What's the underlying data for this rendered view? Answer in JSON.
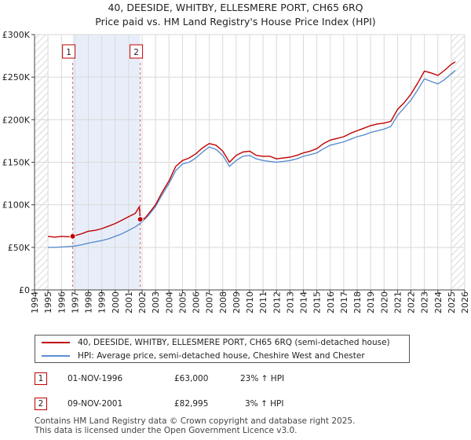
{
  "chart_data": {
    "type": "line",
    "title": "40, DEESIDE, WHITBY, ELLESMERE PORT, CH65 6RQ",
    "subtitle": "Price paid vs. HM Land Registry's House Price Index (HPI)",
    "xlim": [
      1994,
      2026
    ],
    "ylim": [
      0,
      300000
    ],
    "y_ticks": [
      0,
      50000,
      100000,
      150000,
      200000,
      250000,
      300000
    ],
    "y_tick_labels": [
      "£0",
      "£50K",
      "£100K",
      "£150K",
      "£200K",
      "£250K",
      "£300K"
    ],
    "x_ticks": [
      1994,
      1995,
      1996,
      1997,
      1998,
      1999,
      2000,
      2001,
      2002,
      2003,
      2004,
      2005,
      2006,
      2007,
      2008,
      2009,
      2010,
      2011,
      2012,
      2013,
      2014,
      2015,
      2016,
      2017,
      2018,
      2019,
      2020,
      2021,
      2022,
      2023,
      2024,
      2025,
      2026
    ],
    "x_tick_labels": [
      "1994",
      "1995",
      "1996",
      "1997",
      "1998",
      "1999",
      "2000",
      "2001",
      "2002",
      "2003",
      "2004",
      "2005",
      "2006",
      "2007",
      "2008",
      "2009",
      "2010",
      "2011",
      "2012",
      "2013",
      "2014",
      "2015",
      "2016",
      "2017",
      "2018",
      "2019",
      "2020",
      "2021",
      "2022",
      "2023",
      "2024",
      "2025",
      "2026"
    ],
    "shaded_span": [
      1996.84,
      2001.86
    ],
    "hatched_before": 1995.0,
    "hatched_after": 2025.0,
    "series": [
      {
        "name": "40, DEESIDE, WHITBY, ELLESMERE PORT, CH65 6RQ (semi-detached house)",
        "color": "#c00000",
        "x": [
          1995.0,
          1995.5,
          1996.0,
          1996.5,
          1996.84,
          1997.5,
          1998.0,
          1998.5,
          1999.0,
          1999.5,
          2000.0,
          2000.5,
          2001.0,
          2001.5,
          2001.8,
          2001.86,
          2002.2,
          2002.5,
          2003.0,
          2003.5,
          2004.0,
          2004.5,
          2005.0,
          2005.5,
          2006.0,
          2006.5,
          2007.0,
          2007.5,
          2008.0,
          2008.5,
          2009.0,
          2009.5,
          2010.0,
          2010.5,
          2011.0,
          2011.5,
          2012.0,
          2012.5,
          2013.0,
          2013.5,
          2014.0,
          2014.5,
          2015.0,
          2015.5,
          2016.0,
          2016.5,
          2017.0,
          2017.5,
          2018.0,
          2018.5,
          2019.0,
          2019.5,
          2020.0,
          2020.5,
          2021.0,
          2021.5,
          2022.0,
          2022.5,
          2023.0,
          2023.5,
          2024.0,
          2024.5,
          2025.0,
          2025.3
        ],
        "values": [
          63000,
          62000,
          63000,
          62500,
          63000,
          66000,
          69000,
          70000,
          72000,
          75000,
          78000,
          82000,
          86000,
          90000,
          98000,
          82995,
          84000,
          90000,
          100000,
          115000,
          128000,
          145000,
          152000,
          155000,
          160000,
          167000,
          172000,
          170000,
          163000,
          150000,
          158000,
          162000,
          163000,
          158000,
          157000,
          157000,
          154000,
          155000,
          156000,
          158000,
          161000,
          163000,
          166000,
          172000,
          176000,
          178000,
          180000,
          184000,
          187000,
          190000,
          193000,
          195000,
          196000,
          198000,
          212000,
          220000,
          230000,
          243000,
          257000,
          255000,
          252000,
          258000,
          265000,
          268000
        ]
      },
      {
        "name": "HPI: Average price, semi-detached house, Cheshire West and Chester",
        "color": "#5b8fd0",
        "x": [
          1995.0,
          1995.5,
          1996.0,
          1996.5,
          1997.0,
          1997.5,
          1998.0,
          1998.5,
          1999.0,
          1999.5,
          2000.0,
          2000.5,
          2001.0,
          2001.5,
          2002.0,
          2002.5,
          2003.0,
          2003.5,
          2004.0,
          2004.5,
          2005.0,
          2005.5,
          2006.0,
          2006.5,
          2007.0,
          2007.5,
          2008.0,
          2008.5,
          2009.0,
          2009.5,
          2010.0,
          2010.5,
          2011.0,
          2011.5,
          2012.0,
          2012.5,
          2013.0,
          2013.5,
          2014.0,
          2014.5,
          2015.0,
          2015.5,
          2016.0,
          2016.5,
          2017.0,
          2017.5,
          2018.0,
          2018.5,
          2019.0,
          2019.5,
          2020.0,
          2020.5,
          2021.0,
          2021.5,
          2022.0,
          2022.5,
          2023.0,
          2023.5,
          2024.0,
          2024.5,
          2025.0,
          2025.3
        ],
        "values": [
          50000,
          50000,
          50500,
          51000,
          51500,
          53000,
          55000,
          56500,
          58000,
          60000,
          63000,
          66000,
          70000,
          74000,
          80000,
          88000,
          98000,
          112000,
          125000,
          140000,
          148000,
          150000,
          155000,
          162000,
          168000,
          165000,
          158000,
          145000,
          152000,
          157000,
          158000,
          154000,
          152000,
          151000,
          150000,
          151000,
          152000,
          154000,
          157000,
          159000,
          161000,
          166000,
          170000,
          172000,
          174000,
          177000,
          180000,
          182000,
          185000,
          187000,
          189000,
          192000,
          205000,
          214000,
          223000,
          235000,
          248000,
          245000,
          242000,
          247000,
          254000,
          258000
        ]
      }
    ],
    "markers": [
      {
        "label": "1",
        "x": 1996.84,
        "y": 63000
      },
      {
        "label": "2",
        "x": 2001.86,
        "y": 82995
      }
    ]
  },
  "legend": {
    "entries": [
      {
        "label": "40, DEESIDE, WHITBY, ELLESMERE PORT, CH65 6RQ (semi-detached house)",
        "color": "#c00000"
      },
      {
        "label": "HPI: Average price, semi-detached house, Cheshire West and Chester",
        "color": "#5b8fd0"
      }
    ]
  },
  "transactions": [
    {
      "num": "1",
      "date": "01-NOV-1996",
      "price": "£63,000",
      "hpi": "23% ↑ HPI"
    },
    {
      "num": "2",
      "date": "09-NOV-2001",
      "price": "£82,995",
      "hpi": "3% ↑ HPI"
    }
  ],
  "footer": {
    "line1": "Contains HM Land Registry data © Crown copyright and database right 2025.",
    "line2": "This data is licensed under the Open Government Licence v3.0."
  }
}
